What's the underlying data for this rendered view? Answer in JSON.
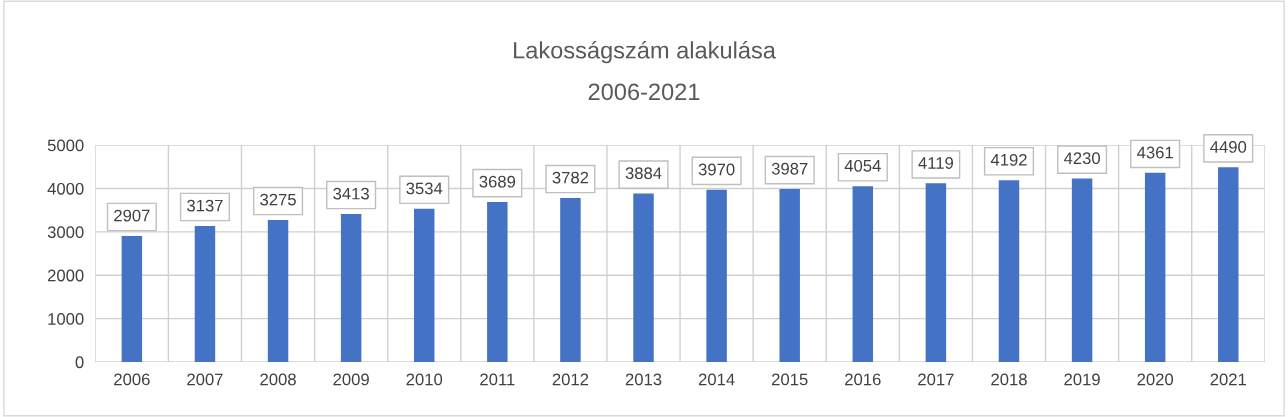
{
  "chart_data": {
    "type": "bar",
    "title": "Lakosságszám alakulása",
    "subtitle": "2006-2021",
    "categories": [
      "2006",
      "2007",
      "2008",
      "2009",
      "2010",
      "2011",
      "2012",
      "2013",
      "2014",
      "2015",
      "2016",
      "2017",
      "2018",
      "2019",
      "2020",
      "2021"
    ],
    "values": [
      2907,
      3137,
      3275,
      3413,
      3534,
      3689,
      3782,
      3884,
      3970,
      3987,
      4054,
      4119,
      4192,
      4230,
      4361,
      4490
    ],
    "color": "#4472c4",
    "ylim": [
      0,
      5000
    ],
    "yticks": [
      0,
      1000,
      2000,
      3000,
      4000,
      5000
    ],
    "grid": true,
    "data_labels": true
  }
}
